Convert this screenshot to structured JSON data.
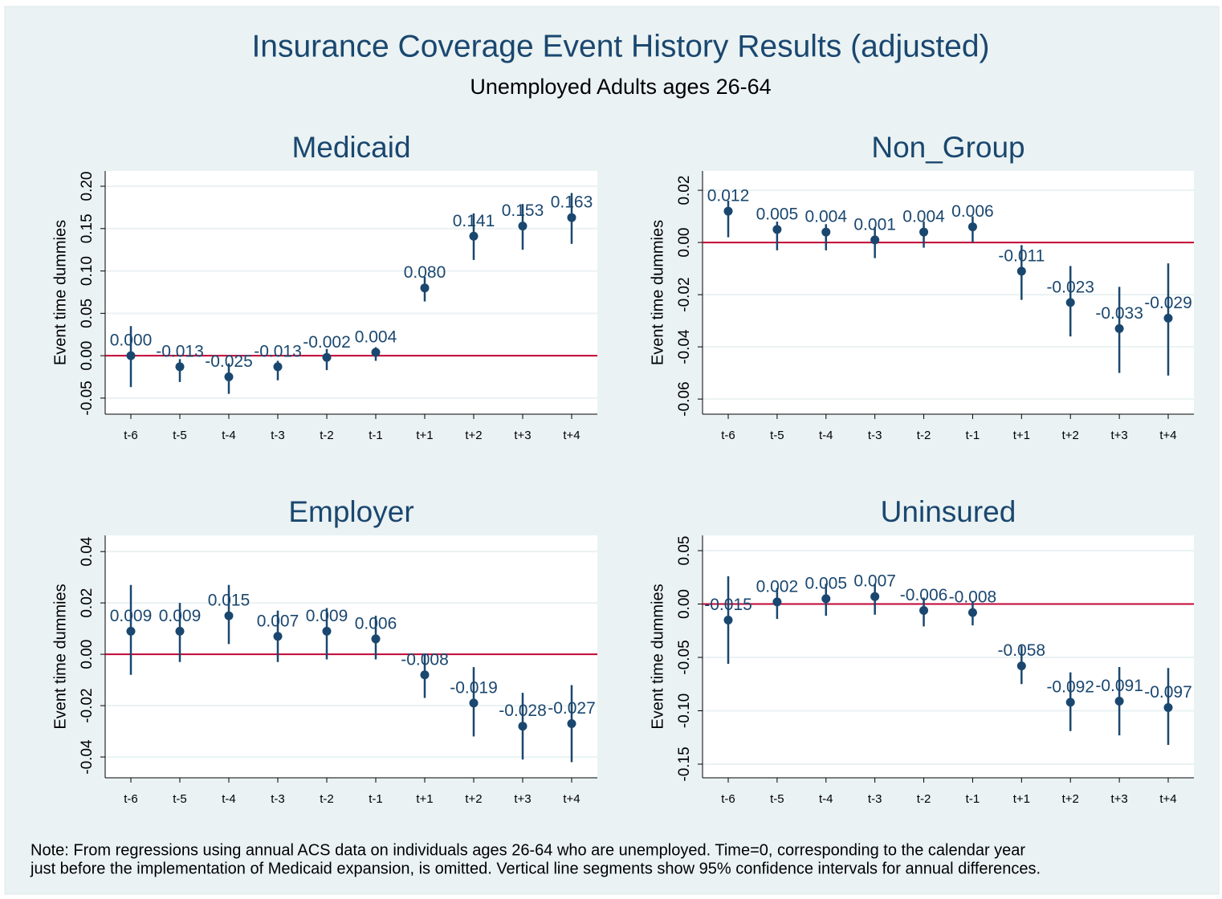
{
  "title": "Insurance Coverage Event History Results (adjusted)",
  "subtitle": "Unemployed Adults ages 26-64",
  "note": [
    "Note: From regressions using annual ACS data on individuals ages 26-64 who are unemployed. Time=0, corresponding to the calendar year",
    "just before the implementation of Medicaid expansion, is omitted. Vertical line segments show 95% confidence intervals for annual differences."
  ],
  "chart_data": [
    {
      "type": "errorbar",
      "title": "Medicaid",
      "y_label": "Event time dummies",
      "categories": [
        "t-6",
        "t-5",
        "t-4",
        "t-3",
        "t-2",
        "t-1",
        "t+1",
        "t+2",
        "t+3",
        "t+4"
      ],
      "values": [
        0.0,
        -0.013,
        -0.025,
        -0.013,
        -0.002,
        0.004,
        0.08,
        0.141,
        0.153,
        0.163
      ],
      "value_labels": [
        "0.000",
        "-0.013",
        "-0.025",
        "-0.013",
        "-0.002",
        "0.004",
        "0.080",
        "0.141",
        "0.153",
        "0.163"
      ],
      "ci_low": [
        -0.037,
        -0.031,
        -0.045,
        -0.029,
        -0.017,
        -0.006,
        0.064,
        0.113,
        0.125,
        0.132
      ],
      "ci_high": [
        0.035,
        -0.004,
        -0.009,
        -0.006,
        0.008,
        0.01,
        0.093,
        0.168,
        0.179,
        0.192
      ],
      "color": "#1a476f",
      "refline": 0,
      "refline_color": "#c10534",
      "ylim": [
        -0.069,
        0.218
      ],
      "yticks": [
        {
          "value": -0.05,
          "label": "-0.05"
        },
        {
          "value": 0,
          "label": "0.00"
        },
        {
          "value": 0.05,
          "label": "0.05"
        },
        {
          "value": 0.1,
          "label": "0.10"
        },
        {
          "value": 0.15,
          "label": "0.15"
        },
        {
          "value": 0.2,
          "label": "0.20"
        }
      ],
      "grid": true
    },
    {
      "type": "errorbar",
      "title": "Non_Group",
      "y_label": "Event time dummies",
      "categories": [
        "t-6",
        "t-5",
        "t-4",
        "t-3",
        "t-2",
        "t-1",
        "t+1",
        "t+2",
        "t+3",
        "t+4"
      ],
      "values": [
        0.012,
        0.005,
        0.004,
        0.001,
        0.004,
        0.006,
        -0.011,
        -0.023,
        -0.033,
        -0.029
      ],
      "value_labels": [
        "0.012",
        "0.005",
        "0.004",
        "0.001",
        "0.004",
        "0.006",
        "-0.011",
        "-0.023",
        "-0.033",
        "-0.029"
      ],
      "ci_low": [
        0.002,
        -0.003,
        -0.003,
        -0.006,
        -0.002,
        0.0,
        -0.022,
        -0.036,
        -0.05,
        -0.051
      ],
      "ci_high": [
        0.016,
        0.008,
        0.007,
        0.006,
        0.008,
        0.01,
        -0.001,
        -0.009,
        -0.017,
        -0.008
      ],
      "color": "#1a476f",
      "refline": 0,
      "refline_color": "#c10534",
      "ylim": [
        -0.0658,
        0.0274
      ],
      "yticks": [
        {
          "value": -0.06,
          "label": "-0.06"
        },
        {
          "value": -0.04,
          "label": "-0.04"
        },
        {
          "value": -0.02,
          "label": "-0.02"
        },
        {
          "value": 0,
          "label": "0.00"
        },
        {
          "value": 0.02,
          "label": "0.02"
        }
      ],
      "grid": true
    },
    {
      "type": "errorbar",
      "title": "Employer",
      "y_label": "Event time dummies",
      "categories": [
        "t-6",
        "t-5",
        "t-4",
        "t-3",
        "t-2",
        "t-1",
        "t+1",
        "t+2",
        "t+3",
        "t+4"
      ],
      "values": [
        0.009,
        0.009,
        0.015,
        0.007,
        0.009,
        0.006,
        -0.008,
        -0.019,
        -0.028,
        -0.027
      ],
      "value_labels": [
        "0.009",
        "0.009",
        "0.015",
        "0.007",
        "0.009",
        "0.006",
        "-0.008",
        "-0.019",
        "-0.028",
        "-0.027"
      ],
      "ci_low": [
        -0.008,
        -0.003,
        0.004,
        -0.003,
        -0.002,
        -0.002,
        -0.017,
        -0.032,
        -0.041,
        -0.042
      ],
      "ci_high": [
        0.027,
        0.02,
        0.027,
        0.017,
        0.018,
        0.015,
        0.0,
        -0.005,
        -0.015,
        -0.012
      ],
      "color": "#1a476f",
      "refline": 0,
      "refline_color": "#c10534",
      "ylim": [
        -0.0481,
        0.0463
      ],
      "yticks": [
        {
          "value": -0.04,
          "label": "-0.04"
        },
        {
          "value": -0.02,
          "label": "-0.02"
        },
        {
          "value": 0,
          "label": "0.00"
        },
        {
          "value": 0.02,
          "label": "0.02"
        },
        {
          "value": 0.04,
          "label": "0.04"
        }
      ],
      "grid": true
    },
    {
      "type": "errorbar",
      "title": "Uninsured",
      "y_label": "Event time dummies",
      "categories": [
        "t-6",
        "t-5",
        "t-4",
        "t-3",
        "t-2",
        "t-1",
        "t+1",
        "t+2",
        "t+3",
        "t+4"
      ],
      "values": [
        -0.015,
        0.002,
        0.005,
        0.007,
        -0.006,
        -0.008,
        -0.058,
        -0.092,
        -0.091,
        -0.097
      ],
      "value_labels": [
        "-0.015",
        "0.002",
        "0.005",
        "0.007",
        "-0.006",
        "-0.008",
        "-0.058",
        "-0.092",
        "-0.091",
        "-0.097"
      ],
      "ci_low": [
        -0.056,
        -0.014,
        -0.011,
        -0.01,
        -0.021,
        -0.02,
        -0.075,
        -0.119,
        -0.123,
        -0.132
      ],
      "ci_high": [
        0.026,
        0.015,
        0.019,
        0.019,
        0.006,
        0.002,
        -0.039,
        -0.064,
        -0.059,
        -0.06
      ],
      "color": "#1a476f",
      "refline": 0,
      "refline_color": "#c10534",
      "ylim": [
        -0.1628,
        0.0643
      ],
      "yticks": [
        {
          "value": -0.15,
          "label": "-0.15"
        },
        {
          "value": -0.1,
          "label": "-0.10"
        },
        {
          "value": -0.05,
          "label": "-0.05"
        },
        {
          "value": 0,
          "label": "0.00"
        },
        {
          "value": 0.05,
          "label": "0.05"
        }
      ],
      "grid": true
    }
  ]
}
